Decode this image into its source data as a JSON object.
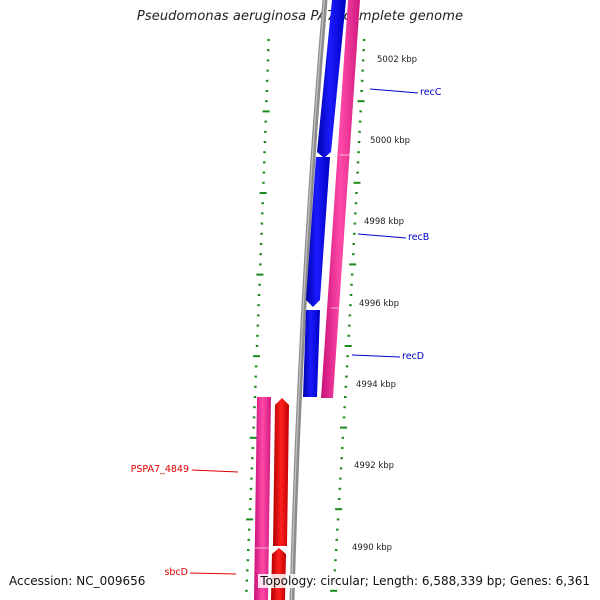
{
  "title": "Pseudomonas aeruginosa PA7, complete genome",
  "footer": {
    "accession": "Accession: NC_009656",
    "summary": "Topology: circular; Length: 6,588,339 bp; Genes: 6,361"
  },
  "ticks": [
    {
      "label": "5002 kbp"
    },
    {
      "label": "5000 kbp"
    },
    {
      "label": "4998 kbp"
    },
    {
      "label": "4996 kbp"
    },
    {
      "label": "4994 kbp"
    },
    {
      "label": "4992 kbp"
    },
    {
      "label": "4990 kbp"
    }
  ],
  "genes": [
    {
      "name": "recC",
      "color": "#0000cc"
    },
    {
      "name": "recB",
      "color": "#0000cc"
    },
    {
      "name": "recD",
      "color": "#0000cc"
    },
    {
      "name": "PSPA7_4849",
      "color": "#dd0000"
    },
    {
      "name": "sbcD",
      "color": "#dd0000"
    }
  ],
  "colors": {
    "backbone": "#8c8c8c",
    "forward_cds": "#0000ff",
    "reverse_cds": "#ff0000",
    "gene_track": "#ff2d9b",
    "tick": "#1a8a1a"
  }
}
